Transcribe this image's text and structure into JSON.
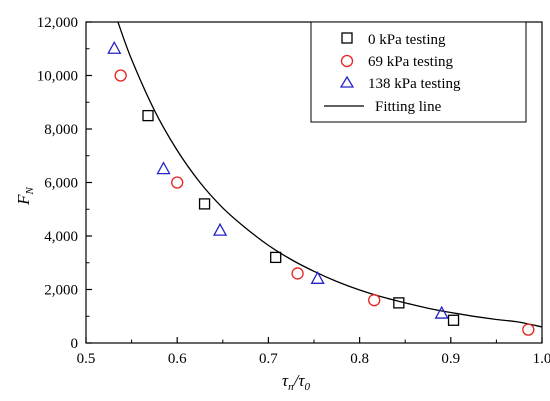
{
  "chart_data": {
    "type": "scatter",
    "xlabel": {
      "main": "τ",
      "sub1": "n",
      "sep": "/τ",
      "sub2": "0"
    },
    "ylabel": {
      "main": "F",
      "sub": "N"
    },
    "xlim": [
      0.5,
      1.0
    ],
    "ylim": [
      0,
      12000
    ],
    "xticks": [
      0.5,
      0.6,
      0.7,
      0.8,
      0.9,
      1.0
    ],
    "xtick_labels": [
      "0.5",
      "0.6",
      "0.7",
      "0.8",
      "0.9",
      "1.0"
    ],
    "yticks": [
      0,
      2000,
      4000,
      6000,
      8000,
      10000,
      12000
    ],
    "ytick_labels": [
      "0",
      "2,000",
      "4,000",
      "6,000",
      "8,000",
      "10,000",
      "12,000"
    ],
    "grid": false,
    "legend_position": "top-right",
    "series": [
      {
        "name": "0 kPa testing",
        "marker": "square",
        "color": "#000000",
        "x": [
          0.568,
          0.63,
          0.708,
          0.843,
          0.903
        ],
        "y": [
          8500,
          5200,
          3200,
          1500,
          850
        ]
      },
      {
        "name": "69 kPa testing",
        "marker": "circle",
        "color": "#e8231f",
        "x": [
          0.538,
          0.6,
          0.732,
          0.816,
          0.985
        ],
        "y": [
          10000,
          6000,
          2600,
          1600,
          500
        ]
      },
      {
        "name": "138 kPa testing",
        "marker": "triangle",
        "color": "#2323c8",
        "x": [
          0.531,
          0.585,
          0.647,
          0.754,
          0.89
        ],
        "y": [
          11000,
          6500,
          4200,
          2400,
          1100
        ]
      },
      {
        "name": "Fitting line",
        "marker": "line",
        "color": "#000000",
        "x": [
          0.535,
          0.55,
          0.575,
          0.6,
          0.625,
          0.65,
          0.675,
          0.7,
          0.725,
          0.75,
          0.775,
          0.8,
          0.825,
          0.85,
          0.875,
          0.9,
          0.925,
          0.95,
          0.975,
          1.0
        ],
        "y": [
          12000,
          10600,
          8700,
          7200,
          6000,
          5050,
          4300,
          3650,
          3120,
          2680,
          2300,
          1980,
          1720,
          1500,
          1300,
          1140,
          1000,
          880,
          780,
          600
        ]
      }
    ]
  }
}
